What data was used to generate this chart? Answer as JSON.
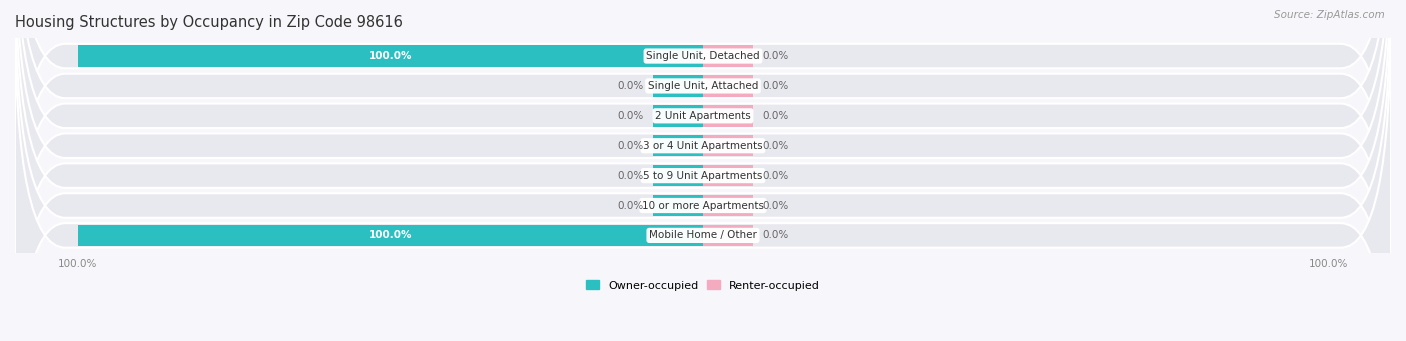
{
  "title": "Housing Structures by Occupancy in Zip Code 98616",
  "source": "Source: ZipAtlas.com",
  "categories": [
    "Single Unit, Detached",
    "Single Unit, Attached",
    "2 Unit Apartments",
    "3 or 4 Unit Apartments",
    "5 to 9 Unit Apartments",
    "10 or more Apartments",
    "Mobile Home / Other"
  ],
  "owner_values": [
    100.0,
    0.0,
    0.0,
    0.0,
    0.0,
    0.0,
    100.0
  ],
  "renter_values": [
    0.0,
    0.0,
    0.0,
    0.0,
    0.0,
    0.0,
    0.0
  ],
  "owner_color": "#2BBFC2",
  "renter_color": "#F4AABF",
  "pill_bg_color": "#E8E8EF",
  "fig_bg_color": "#F7F7FB",
  "title_fontsize": 10.5,
  "source_fontsize": 7.5,
  "value_fontsize": 7.5,
  "label_fontsize": 7.5,
  "legend_fontsize": 8,
  "figsize": [
    14.06,
    3.41
  ],
  "dpi": 100,
  "xlim_left": -110,
  "xlim_right": 110,
  "owner_stub": 8,
  "renter_stub": 8
}
